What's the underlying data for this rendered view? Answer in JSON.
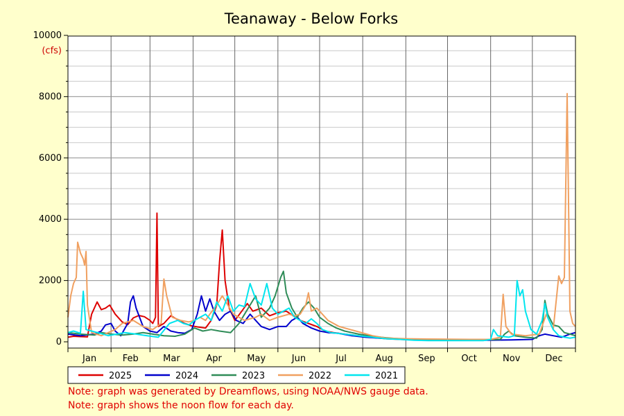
{
  "chart_data": {
    "type": "line",
    "title": "Teanaway - Below Forks",
    "ylabel": "(cfs)",
    "xlabel": "",
    "ylim": [
      0,
      10000
    ],
    "yticks": [
      0,
      2000,
      4000,
      6000,
      8000,
      10000
    ],
    "x_unit": "day of year",
    "xlim": [
      1,
      366
    ],
    "months": [
      "Jan",
      "Feb",
      "Mar",
      "Apr",
      "May",
      "Jun",
      "Jul",
      "Aug",
      "Sep",
      "Oct",
      "Nov",
      "Dec"
    ],
    "grid": true,
    "legend_position": "bottom",
    "series": [
      {
        "name": "2025",
        "color": "#dd0000",
        "points": [
          [
            1,
            150
          ],
          [
            5,
            180
          ],
          [
            10,
            170
          ],
          [
            15,
            160
          ],
          [
            18,
            900
          ],
          [
            22,
            1300
          ],
          [
            25,
            1050
          ],
          [
            28,
            1100
          ],
          [
            31,
            1200
          ],
          [
            35,
            900
          ],
          [
            40,
            650
          ],
          [
            44,
            560
          ],
          [
            48,
            780
          ],
          [
            52,
            860
          ],
          [
            56,
            820
          ],
          [
            60,
            700
          ],
          [
            62,
            600
          ],
          [
            64,
            800
          ],
          [
            65,
            4200
          ],
          [
            66,
            500
          ],
          [
            70,
            600
          ],
          [
            75,
            850
          ],
          [
            80,
            720
          ],
          [
            85,
            600
          ],
          [
            90,
            520
          ],
          [
            95,
            480
          ],
          [
            100,
            450
          ],
          [
            104,
            700
          ],
          [
            108,
            1200
          ],
          [
            110,
            2600
          ],
          [
            112,
            3650
          ],
          [
            114,
            2000
          ],
          [
            117,
            1100
          ],
          [
            121,
            700
          ],
          [
            126,
            1000
          ],
          [
            130,
            1250
          ],
          [
            134,
            1000
          ],
          [
            140,
            1100
          ],
          [
            146,
            850
          ],
          [
            152,
            950
          ],
          [
            158,
            1000
          ],
          [
            163,
            850
          ],
          [
            168,
            700
          ],
          [
            174,
            600
          ],
          [
            180,
            500
          ],
          [
            186,
            350
          ],
          [
            192,
            300
          ],
          [
            200,
            250
          ],
          [
            210,
            200
          ],
          [
            220,
            140
          ],
          [
            230,
            100
          ],
          [
            240,
            80
          ],
          [
            246,
            70
          ]
        ]
      },
      {
        "name": "2024",
        "color": "#0000cc",
        "points": [
          [
            1,
            250
          ],
          [
            10,
            200
          ],
          [
            20,
            250
          ],
          [
            25,
            350
          ],
          [
            28,
            550
          ],
          [
            32,
            600
          ],
          [
            35,
            350
          ],
          [
            39,
            200
          ],
          [
            44,
            600
          ],
          [
            46,
            1300
          ],
          [
            48,
            1500
          ],
          [
            50,
            1100
          ],
          [
            55,
            500
          ],
          [
            60,
            350
          ],
          [
            65,
            300
          ],
          [
            70,
            500
          ],
          [
            75,
            350
          ],
          [
            80,
            300
          ],
          [
            85,
            280
          ],
          [
            90,
            400
          ],
          [
            94,
            900
          ],
          [
            97,
            1500
          ],
          [
            100,
            1000
          ],
          [
            103,
            1400
          ],
          [
            106,
            1000
          ],
          [
            110,
            700
          ],
          [
            114,
            900
          ],
          [
            118,
            1000
          ],
          [
            122,
            700
          ],
          [
            127,
            600
          ],
          [
            132,
            900
          ],
          [
            136,
            700
          ],
          [
            140,
            500
          ],
          [
            146,
            400
          ],
          [
            152,
            500
          ],
          [
            158,
            500
          ],
          [
            162,
            700
          ],
          [
            166,
            800
          ],
          [
            170,
            600
          ],
          [
            176,
            450
          ],
          [
            182,
            350
          ],
          [
            188,
            300
          ],
          [
            195,
            280
          ],
          [
            205,
            200
          ],
          [
            215,
            150
          ],
          [
            225,
            120
          ],
          [
            235,
            100
          ],
          [
            246,
            80
          ],
          [
            260,
            60
          ],
          [
            280,
            50
          ],
          [
            300,
            50
          ],
          [
            320,
            60
          ],
          [
            335,
            80
          ],
          [
            340,
            200
          ],
          [
            344,
            250
          ],
          [
            350,
            200
          ],
          [
            356,
            150
          ],
          [
            362,
            250
          ],
          [
            366,
            300
          ]
        ]
      },
      {
        "name": "2023",
        "color": "#2e8b57",
        "points": [
          [
            1,
            300
          ],
          [
            10,
            250
          ],
          [
            20,
            220
          ],
          [
            25,
            300
          ],
          [
            32,
            250
          ],
          [
            40,
            220
          ],
          [
            48,
            250
          ],
          [
            55,
            300
          ],
          [
            62,
            250
          ],
          [
            70,
            200
          ],
          [
            78,
            180
          ],
          [
            85,
            250
          ],
          [
            92,
            450
          ],
          [
            98,
            350
          ],
          [
            104,
            400
          ],
          [
            110,
            350
          ],
          [
            118,
            300
          ],
          [
            124,
            600
          ],
          [
            128,
            900
          ],
          [
            132,
            1200
          ],
          [
            136,
            1500
          ],
          [
            140,
            800
          ],
          [
            146,
            1100
          ],
          [
            150,
            1500
          ],
          [
            154,
            2100
          ],
          [
            156,
            2300
          ],
          [
            158,
            1600
          ],
          [
            162,
            1100
          ],
          [
            166,
            800
          ],
          [
            170,
            1100
          ],
          [
            174,
            1300
          ],
          [
            178,
            1100
          ],
          [
            182,
            800
          ],
          [
            188,
            600
          ],
          [
            194,
            450
          ],
          [
            200,
            350
          ],
          [
            210,
            250
          ],
          [
            220,
            180
          ],
          [
            230,
            130
          ],
          [
            240,
            100
          ],
          [
            246,
            80
          ],
          [
            260,
            70
          ],
          [
            300,
            60
          ],
          [
            312,
            80
          ],
          [
            315,
            250
          ],
          [
            318,
            350
          ],
          [
            322,
            200
          ],
          [
            330,
            150
          ],
          [
            338,
            120
          ],
          [
            342,
            400
          ],
          [
            344,
            1350
          ],
          [
            346,
            900
          ],
          [
            350,
            550
          ],
          [
            354,
            500
          ],
          [
            358,
            300
          ],
          [
            362,
            250
          ],
          [
            366,
            200
          ]
        ]
      },
      {
        "name": "2022",
        "color": "#f0a060",
        "points": [
          [
            1,
            800
          ],
          [
            3,
            1500
          ],
          [
            5,
            1900
          ],
          [
            7,
            2100
          ],
          [
            8,
            3250
          ],
          [
            10,
            2900
          ],
          [
            12,
            2700
          ],
          [
            13,
            2500
          ],
          [
            14,
            2950
          ],
          [
            15,
            1200
          ],
          [
            18,
            300
          ],
          [
            25,
            200
          ],
          [
            30,
            300
          ],
          [
            35,
            400
          ],
          [
            40,
            600
          ],
          [
            48,
            700
          ],
          [
            55,
            500
          ],
          [
            62,
            400
          ],
          [
            68,
            600
          ],
          [
            70,
            2050
          ],
          [
            72,
            1500
          ],
          [
            76,
            800
          ],
          [
            82,
            700
          ],
          [
            88,
            650
          ],
          [
            92,
            700
          ],
          [
            96,
            800
          ],
          [
            100,
            700
          ],
          [
            103,
            900
          ],
          [
            108,
            1200
          ],
          [
            112,
            1500
          ],
          [
            116,
            1200
          ],
          [
            120,
            900
          ],
          [
            124,
            800
          ],
          [
            128,
            700
          ],
          [
            132,
            750
          ],
          [
            136,
            800
          ],
          [
            140,
            900
          ],
          [
            146,
            700
          ],
          [
            152,
            800
          ],
          [
            160,
            900
          ],
          [
            164,
            850
          ],
          [
            168,
            900
          ],
          [
            172,
            1200
          ],
          [
            174,
            1600
          ],
          [
            176,
            1000
          ],
          [
            180,
            1100
          ],
          [
            184,
            900
          ],
          [
            188,
            700
          ],
          [
            196,
            500
          ],
          [
            204,
            400
          ],
          [
            212,
            300
          ],
          [
            220,
            200
          ],
          [
            230,
            120
          ],
          [
            246,
            100
          ],
          [
            260,
            90
          ],
          [
            290,
            80
          ],
          [
            305,
            80
          ],
          [
            312,
            150
          ],
          [
            314,
            1550
          ],
          [
            316,
            500
          ],
          [
            320,
            250
          ],
          [
            330,
            200
          ],
          [
            340,
            250
          ],
          [
            345,
            900
          ],
          [
            350,
            400
          ],
          [
            354,
            2150
          ],
          [
            356,
            1900
          ],
          [
            358,
            2100
          ],
          [
            360,
            8100
          ],
          [
            362,
            1000
          ],
          [
            364,
            600
          ],
          [
            366,
            500
          ]
        ]
      },
      {
        "name": "2021",
        "color": "#00e5ee",
        "points": [
          [
            1,
            300
          ],
          [
            5,
            350
          ],
          [
            10,
            280
          ],
          [
            12,
            1650
          ],
          [
            14,
            400
          ],
          [
            18,
            350
          ],
          [
            24,
            280
          ],
          [
            30,
            200
          ],
          [
            36,
            250
          ],
          [
            42,
            300
          ],
          [
            50,
            250
          ],
          [
            58,
            200
          ],
          [
            66,
            150
          ],
          [
            74,
            600
          ],
          [
            80,
            700
          ],
          [
            84,
            600
          ],
          [
            88,
            550
          ],
          [
            92,
            700
          ],
          [
            96,
            800
          ],
          [
            100,
            900
          ],
          [
            104,
            700
          ],
          [
            108,
            1300
          ],
          [
            112,
            1000
          ],
          [
            116,
            1500
          ],
          [
            120,
            1000
          ],
          [
            124,
            1200
          ],
          [
            128,
            1150
          ],
          [
            132,
            1900
          ],
          [
            136,
            1400
          ],
          [
            140,
            1200
          ],
          [
            144,
            1900
          ],
          [
            148,
            1100
          ],
          [
            152,
            900
          ],
          [
            156,
            1000
          ],
          [
            160,
            1100
          ],
          [
            164,
            800
          ],
          [
            168,
            700
          ],
          [
            172,
            600
          ],
          [
            176,
            750
          ],
          [
            180,
            600
          ],
          [
            184,
            400
          ],
          [
            190,
            300
          ],
          [
            200,
            250
          ],
          [
            210,
            200
          ],
          [
            220,
            150
          ],
          [
            230,
            100
          ],
          [
            240,
            80
          ],
          [
            250,
            50
          ],
          [
            260,
            40
          ],
          [
            280,
            40
          ],
          [
            300,
            40
          ],
          [
            305,
            80
          ],
          [
            307,
            400
          ],
          [
            310,
            200
          ],
          [
            318,
            150
          ],
          [
            322,
            200
          ],
          [
            324,
            2000
          ],
          [
            326,
            1500
          ],
          [
            328,
            1700
          ],
          [
            330,
            1000
          ],
          [
            334,
            400
          ],
          [
            338,
            250
          ],
          [
            342,
            700
          ],
          [
            344,
            1250
          ],
          [
            346,
            800
          ],
          [
            350,
            400
          ],
          [
            354,
            200
          ],
          [
            358,
            150
          ],
          [
            362,
            120
          ],
          [
            366,
            150
          ]
        ]
      }
    ]
  },
  "notes": [
    "Note: graph was generated by Dreamflows, using NOAA/NWS gauge data.",
    "Note: graph shows the noon flow for each day."
  ]
}
